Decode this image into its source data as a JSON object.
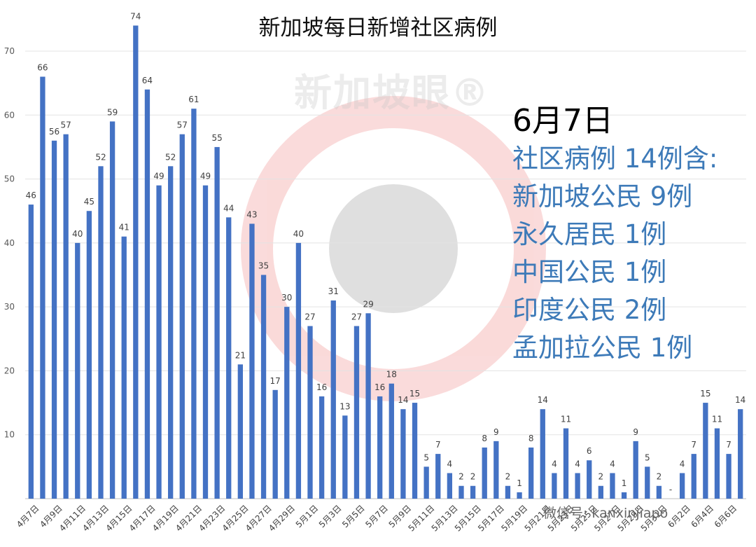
{
  "chart_data": {
    "type": "bar",
    "title": "新加坡每日新增社区病例",
    "ylim": [
      0,
      70
    ],
    "yticks": [
      0,
      10,
      20,
      30,
      40,
      50,
      60,
      70
    ],
    "grid": true,
    "bar_color": "#4472c4",
    "categories": [
      "4月7日",
      "4月8日",
      "4月9日",
      "4月10日",
      "4月11日",
      "4月12日",
      "4月13日",
      "4月14日",
      "4月15日",
      "4月16日",
      "4月17日",
      "4月18日",
      "4月19日",
      "4月20日",
      "4月21日",
      "4月22日",
      "4月23日",
      "4月24日",
      "4月25日",
      "4月26日",
      "4月27日",
      "4月28日",
      "4月29日",
      "4月30日",
      "5月1日",
      "5月2日",
      "5月3日",
      "5月4日",
      "5月5日",
      "5月6日",
      "5月7日",
      "5月8日",
      "5月9日",
      "5月10日",
      "5月11日",
      "5月12日",
      "5月13日",
      "5月14日",
      "5月15日",
      "5月16日",
      "5月17日",
      "5月18日",
      "5月19日",
      "5月20日",
      "5月21日",
      "5月22日",
      "5月23日",
      "5月24日",
      "5月25日",
      "5月26日",
      "5月27日",
      "5月28日",
      "5月29日",
      "5月30日",
      "5月31日",
      "6月1日",
      "6月2日",
      "6月3日",
      "6月4日",
      "6月5日",
      "6月6日",
      "6月7日"
    ],
    "shown_tick_labels": [
      "4月7日",
      "4月9日",
      "4月11日",
      "4月13日",
      "4月15日",
      "4月17日",
      "4月19日",
      "4月21日",
      "4月23日",
      "4月25日",
      "4月27日",
      "4月29日",
      "5月1日",
      "5月3日",
      "5月5日",
      "5月7日",
      "5月9日",
      "5月11日",
      "5月13日",
      "5月15日",
      "5月17日",
      "5月19日",
      "5月21日",
      "5月23日",
      "5月25日",
      "5月27日",
      "5月29日",
      "5月31日",
      "6月2日",
      "6月4日",
      "6月6日"
    ],
    "values": [
      46,
      66,
      56,
      57,
      40,
      45,
      52,
      59,
      41,
      74,
      64,
      49,
      52,
      57,
      61,
      49,
      55,
      44,
      21,
      43,
      35,
      17,
      30,
      40,
      27,
      16,
      31,
      13,
      27,
      29,
      16,
      18,
      14,
      15,
      5,
      7,
      4,
      2,
      2,
      8,
      9,
      2,
      1,
      8,
      14,
      4,
      11,
      4,
      6,
      2,
      4,
      1,
      9,
      5,
      2,
      0,
      4,
      7,
      15,
      11,
      7,
      14
    ],
    "zero_label": "-"
  },
  "annotation": {
    "date": "6月7日",
    "lines": [
      "社区病例 14例含:",
      "新加坡公民 9例",
      "永久居民 1例",
      "中国公民 1例",
      "印度公民 2例",
      "孟加拉公民 1例"
    ]
  },
  "watermark": "新加坡眼®",
  "source": "微信号: kanxinjiapo"
}
